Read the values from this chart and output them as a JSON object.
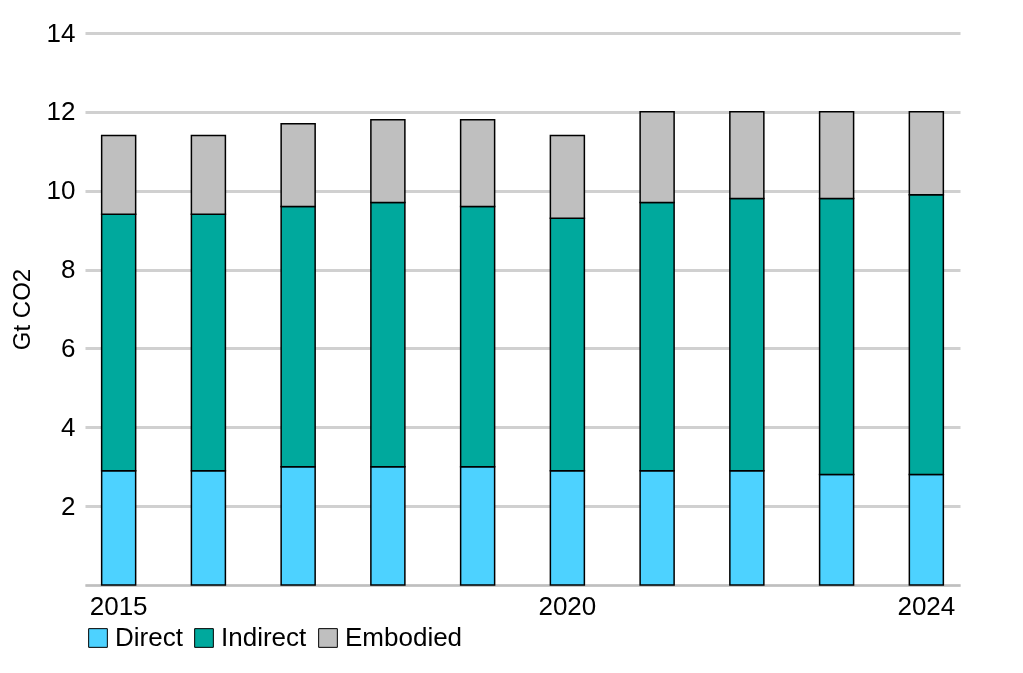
{
  "chart_data": {
    "type": "bar",
    "stacked": true,
    "ylabel": "Gt CO2",
    "categories": [
      "2015",
      null,
      null,
      null,
      null,
      "2020",
      null,
      null,
      null,
      "2024"
    ],
    "series": [
      {
        "name": "Direct",
        "color": "#4dd2ff",
        "values": [
          2.9,
          2.9,
          3.0,
          3.0,
          3.0,
          2.9,
          2.9,
          2.9,
          2.8,
          2.8
        ]
      },
      {
        "name": "Indirect",
        "color": "#00a99d",
        "values": [
          6.5,
          6.5,
          6.6,
          6.7,
          6.6,
          6.4,
          6.8,
          6.9,
          7.0,
          7.1
        ]
      },
      {
        "name": "Embodied",
        "color": "#bfbfbf",
        "values": [
          2.0,
          2.0,
          2.1,
          2.1,
          2.2,
          2.1,
          2.3,
          2.2,
          2.2,
          2.1
        ]
      }
    ],
    "ylim": [
      0,
      14
    ],
    "yticks": [
      {
        "value": 0,
        "label": null
      },
      2,
      4,
      6,
      8,
      10,
      12,
      14
    ],
    "grid": "y",
    "legend": "bottom"
  }
}
